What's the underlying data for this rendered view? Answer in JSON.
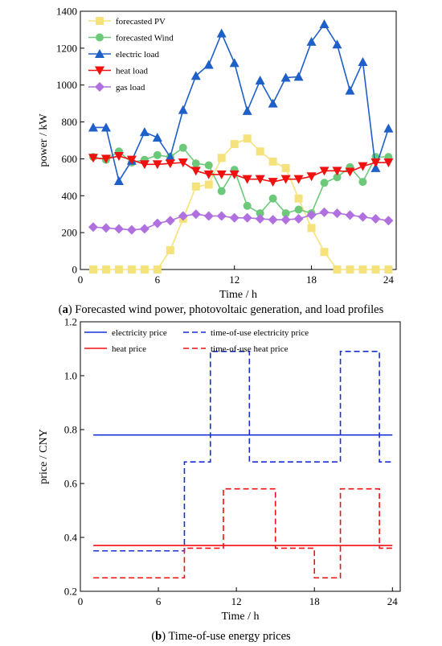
{
  "chart_data": [
    {
      "type": "line",
      "xlabel": "Time / h",
      "ylabel": "power / kW",
      "xlim": [
        0,
        24.6
      ],
      "ylim": [
        0,
        1400
      ],
      "xticks": [
        0,
        6,
        12,
        18,
        24
      ],
      "yticks": [
        0,
        200,
        400,
        600,
        800,
        1000,
        1200,
        1400
      ],
      "legend_position": "top-left",
      "caption": {
        "prefix": "(",
        "letter": "a",
        "text": ") Forecasted wind power, photovoltaic generation, and load profiles"
      },
      "x": [
        1,
        2,
        3,
        4,
        5,
        6,
        7,
        8,
        9,
        10,
        11,
        12,
        13,
        14,
        15,
        16,
        17,
        18,
        19,
        20,
        21,
        22,
        23,
        24
      ],
      "series": [
        {
          "name": "forecasted PV",
          "color": "#f5e27a",
          "marker": "square",
          "values": [
            0,
            0,
            0,
            0,
            0,
            0,
            105,
            275,
            450,
            460,
            605,
            680,
            710,
            640,
            585,
            550,
            385,
            225,
            95,
            0,
            0,
            0,
            0,
            0
          ]
        },
        {
          "name": "forecasted Wind",
          "color": "#6cc97a",
          "marker": "circle",
          "values": [
            610,
            595,
            640,
            580,
            595,
            620,
            610,
            660,
            575,
            565,
            425,
            540,
            345,
            305,
            385,
            305,
            325,
            305,
            470,
            500,
            555,
            475,
            610,
            610
          ]
        },
        {
          "name": "electric load",
          "color": "#1f5fc8",
          "marker": "triangle-up",
          "values": [
            770,
            770,
            480,
            590,
            745,
            715,
            610,
            865,
            1050,
            1110,
            1280,
            1120,
            860,
            1025,
            900,
            1040,
            1045,
            1235,
            1330,
            1220,
            970,
            1125,
            550,
            765
          ]
        },
        {
          "name": "heat load",
          "color": "#f01010",
          "marker": "triangle-down",
          "values": [
            605,
            600,
            615,
            595,
            570,
            570,
            575,
            580,
            535,
            515,
            515,
            515,
            490,
            490,
            475,
            490,
            490,
            505,
            535,
            535,
            530,
            560,
            580,
            580
          ]
        },
        {
          "name": "gas load",
          "color": "#b070e0",
          "marker": "diamond",
          "values": [
            230,
            225,
            220,
            215,
            220,
            250,
            265,
            290,
            300,
            290,
            290,
            280,
            280,
            275,
            270,
            270,
            275,
            295,
            310,
            305,
            295,
            285,
            275,
            265
          ]
        }
      ]
    },
    {
      "type": "line",
      "step": true,
      "xlabel": "Time / h",
      "ylabel": "price / CNY",
      "xlim": [
        0,
        24.6
      ],
      "ylim": [
        0.2,
        1.2
      ],
      "xticks": [
        0,
        6,
        12,
        18,
        24
      ],
      "yticks": [
        0.2,
        0.4,
        0.6,
        0.8,
        1.0,
        1.2
      ],
      "ytick_labels": [
        "0.2",
        "0.4",
        "0.6",
        "0.8",
        "1.0",
        "1.2"
      ],
      "legend_position": "top",
      "caption": {
        "prefix": "(",
        "letter": "b",
        "text": ") Time-of-use energy prices"
      },
      "series": [
        {
          "name": "electricity price",
          "color": "#1a2fd6",
          "dash": false,
          "x": [
            1,
            24
          ],
          "values": [
            0.78,
            0.78
          ]
        },
        {
          "name": "time-of-use electricity price",
          "color": "#1a2fd6",
          "dash": true,
          "x": [
            1,
            8,
            8,
            10,
            10,
            13,
            13,
            20,
            20,
            23,
            23,
            24
          ],
          "values": [
            0.35,
            0.35,
            0.68,
            0.68,
            1.09,
            1.09,
            0.68,
            0.68,
            1.09,
            1.09,
            0.68,
            0.68
          ]
        },
        {
          "name": "heat price",
          "color": "#f01010",
          "dash": false,
          "x": [
            1,
            24
          ],
          "values": [
            0.37,
            0.37
          ]
        },
        {
          "name": "time-of-use heat price",
          "color": "#f01010",
          "dash": true,
          "x": [
            1,
            8,
            8,
            11,
            11,
            15,
            15,
            18,
            18,
            20,
            20,
            23,
            23,
            24
          ],
          "values": [
            0.25,
            0.25,
            0.36,
            0.36,
            0.58,
            0.58,
            0.36,
            0.36,
            0.25,
            0.25,
            0.58,
            0.58,
            0.36,
            0.36
          ]
        }
      ]
    }
  ]
}
